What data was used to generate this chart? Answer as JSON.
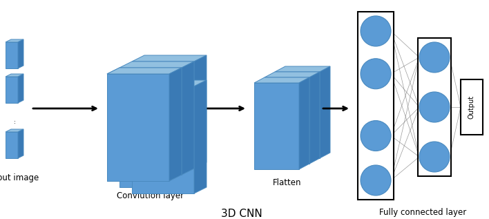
{
  "title": "3D CNN",
  "labels": [
    "Input image",
    "Convlution layer",
    "Flatten",
    "Fully connected layer"
  ],
  "cube_face_color": "#5B9BD5",
  "cube_edge_color": "#4A8ABF",
  "cube_top_color": "#92C0E0",
  "cube_side_color": "#3A7AB5",
  "background_color": "#ffffff",
  "arrow_color": "#000000",
  "node_color": "#5B9BD5",
  "node_edge_color": "#4A8ABF",
  "connection_color": "#888888",
  "title_fontsize": 11,
  "label_fontsize": 8.5
}
